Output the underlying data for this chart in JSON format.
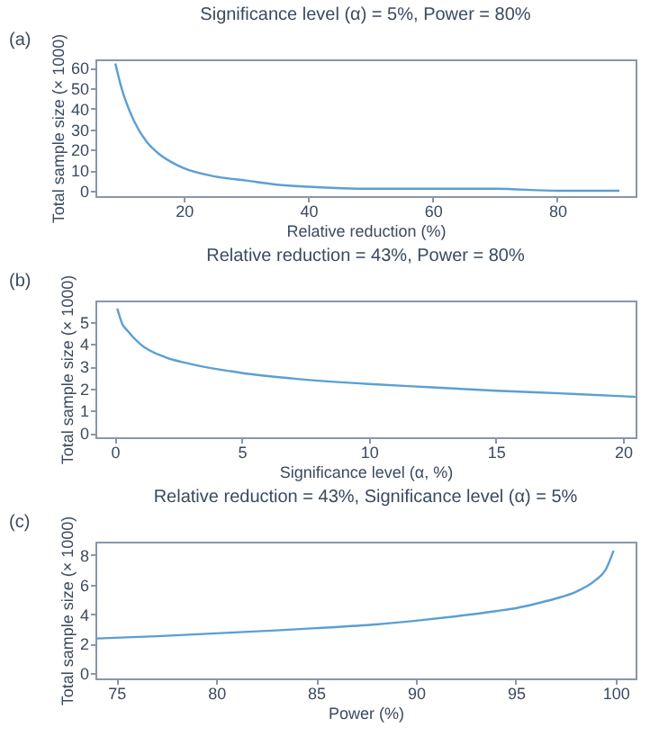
{
  "chart_data": [
    {
      "type": "line",
      "title": "Significance level (α) = 5%, Power = 80%",
      "xlabel": "Relative reduction (%)",
      "ylabel": "Total sample size (× 1000)",
      "annotations": [
        "(a)"
      ],
      "series": [
        {
          "color": "#5b9fd3",
          "x": [
            9,
            10,
            12,
            14,
            16,
            18,
            20,
            25,
            30,
            35,
            40,
            50,
            60,
            70,
            80,
            90
          ],
          "values": [
            62,
            50,
            34,
            24,
            18,
            14,
            11,
            7,
            5,
            3,
            2,
            1,
            1,
            1,
            0,
            0
          ]
        }
      ],
      "xlim": [
        5.8,
        92.6
      ],
      "xticks": [
        20,
        40,
        60,
        80
      ],
      "ylim": [
        -2.6,
        64
      ],
      "yticks": [
        0,
        10,
        20,
        30,
        40,
        50,
        60
      ],
      "grid": false,
      "marker": "none",
      "line_style": "solid"
    },
    {
      "type": "line",
      "title": "Relative reduction = 43%, Power = 80%",
      "xlabel": "Significance level (α, %)",
      "ylabel": "Total sample size (× 1000)",
      "annotations": [
        "(b)"
      ],
      "series": [
        {
          "color": "#5b9fd3",
          "x": [
            0.1,
            0.3,
            0.5,
            1,
            2,
            3,
            5,
            7,
            10,
            12.5,
            15,
            17.5,
            20,
            20.5
          ],
          "values": [
            5.6,
            4.9,
            4.6,
            4.0,
            3.4,
            3.1,
            2.7,
            2.45,
            2.2,
            2.05,
            1.9,
            1.78,
            1.65,
            1.62
          ]
        }
      ],
      "xlim": [
        -0.76,
        20.5
      ],
      "xticks": [
        0,
        5,
        10,
        15,
        20
      ],
      "ylim": [
        -0.2,
        5.96
      ],
      "yticks": [
        0,
        1,
        2,
        3,
        4,
        5
      ],
      "grid": false,
      "marker": "none",
      "line_style": "solid"
    },
    {
      "type": "line",
      "title": "Relative reduction = 43%, Significance level (α) = 5%",
      "xlabel": "Power (%)",
      "ylabel": "Total sample size (× 1000)",
      "annotations": [
        "(c)"
      ],
      "series": [
        {
          "color": "#5b9fd3",
          "x": [
            74,
            77,
            80,
            83,
            85,
            88,
            90,
            92,
            94,
            95,
            96,
            97,
            98,
            99,
            99.5,
            99.9
          ],
          "values": [
            2.35,
            2.5,
            2.7,
            2.9,
            3.05,
            3.3,
            3.55,
            3.85,
            4.2,
            4.4,
            4.7,
            5.05,
            5.5,
            6.3,
            7.0,
            8.3
          ]
        }
      ],
      "xlim": [
        73.95,
        101
      ],
      "xticks": [
        75,
        80,
        85,
        90,
        95,
        100
      ],
      "ylim": [
        -0.35,
        8.9
      ],
      "yticks": [
        0,
        2,
        4,
        6,
        8
      ],
      "grid": false,
      "marker": "none",
      "line_style": "solid"
    }
  ]
}
